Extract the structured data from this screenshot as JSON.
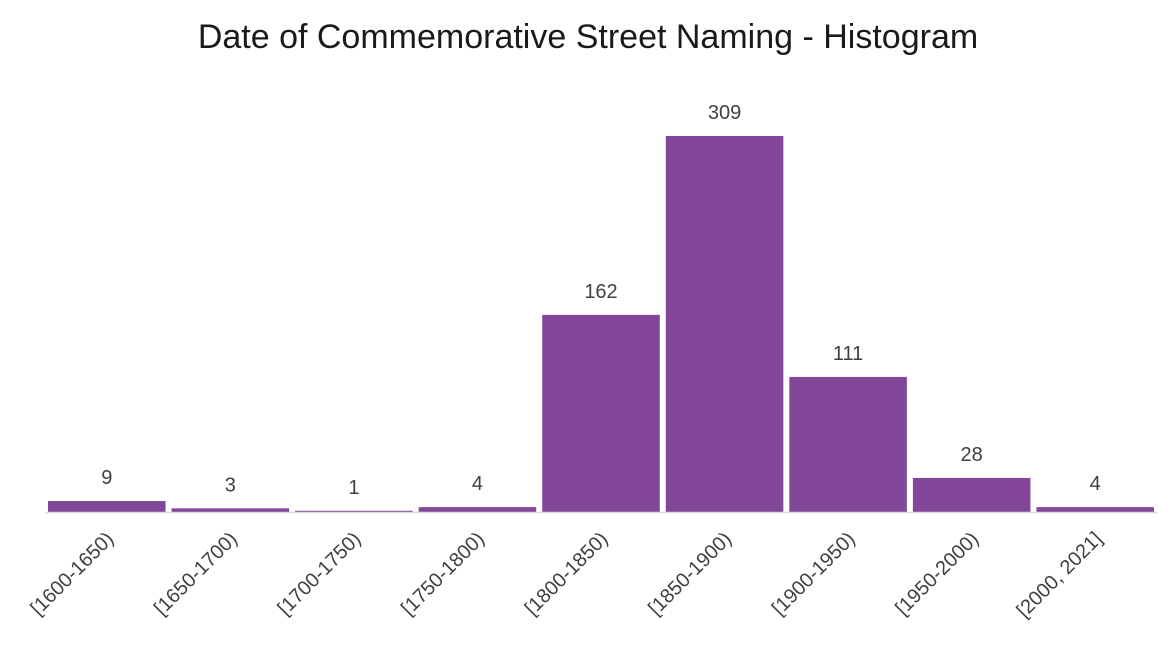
{
  "chart_data": {
    "type": "bar",
    "title": "Date of Commemorative Street Naming - Histogram",
    "xlabel": "",
    "ylabel": "",
    "categories": [
      "[1600-1650)",
      "[1650-1700)",
      "[1700-1750)",
      "[1750-1800)",
      "[1800-1850)",
      "[1850-1900)",
      "[1900-1950)",
      "[1950-2000)",
      "[2000, 2021]"
    ],
    "values": [
      9,
      3,
      1,
      4,
      162,
      309,
      111,
      28,
      4
    ],
    "data_labels": [
      "9",
      "3",
      "1",
      "4",
      "162",
      "309",
      "111",
      "28",
      "4"
    ],
    "ylim": [
      0,
      309
    ],
    "grid": false,
    "legend": "none",
    "bar_color": "#83479a",
    "axis_color": "#d9d9d9"
  }
}
